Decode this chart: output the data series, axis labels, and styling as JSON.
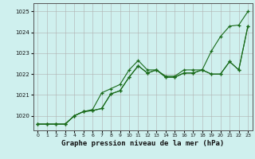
{
  "xlabel": "Graphe pression niveau de la mer (hPa)",
  "ylim": [
    1019.3,
    1025.4
  ],
  "xlim": [
    -0.5,
    23.5
  ],
  "yticks": [
    1020,
    1021,
    1022,
    1023,
    1024,
    1025
  ],
  "xticks": [
    0,
    1,
    2,
    3,
    4,
    5,
    6,
    7,
    8,
    9,
    10,
    11,
    12,
    13,
    14,
    15,
    16,
    17,
    18,
    19,
    20,
    21,
    22,
    23
  ],
  "background_color": "#cff0ee",
  "plot_bg_color": "#cff0ee",
  "grid_color": "#b0b0b0",
  "line_color": "#1a6b1a",
  "series": [
    [
      1019.6,
      1019.6,
      1019.6,
      1019.6,
      1020.0,
      1020.2,
      1020.3,
      1021.1,
      1021.3,
      1021.5,
      1022.2,
      1022.65,
      1022.2,
      1022.2,
      1021.9,
      1021.9,
      1022.2,
      1022.2,
      1022.2,
      1023.1,
      1023.8,
      1024.3,
      1024.35,
      1025.0
    ],
    [
      1019.6,
      1019.6,
      1019.6,
      1019.6,
      1020.0,
      1020.2,
      1020.25,
      1020.35,
      1021.05,
      1021.2,
      1021.85,
      1022.4,
      1022.05,
      1022.2,
      1021.85,
      1021.85,
      1022.05,
      1022.05,
      1022.2,
      1022.0,
      1022.0,
      1022.6,
      1022.2,
      1024.3
    ],
    [
      1019.6,
      1019.6,
      1019.6,
      1019.6,
      1020.0,
      1020.2,
      1020.25,
      1020.35,
      1021.05,
      1021.2,
      1021.85,
      1022.4,
      1022.05,
      1022.2,
      1021.85,
      1021.85,
      1022.05,
      1022.05,
      1022.2,
      1022.0,
      1022.0,
      1022.6,
      1022.2,
      1024.3
    ]
  ]
}
